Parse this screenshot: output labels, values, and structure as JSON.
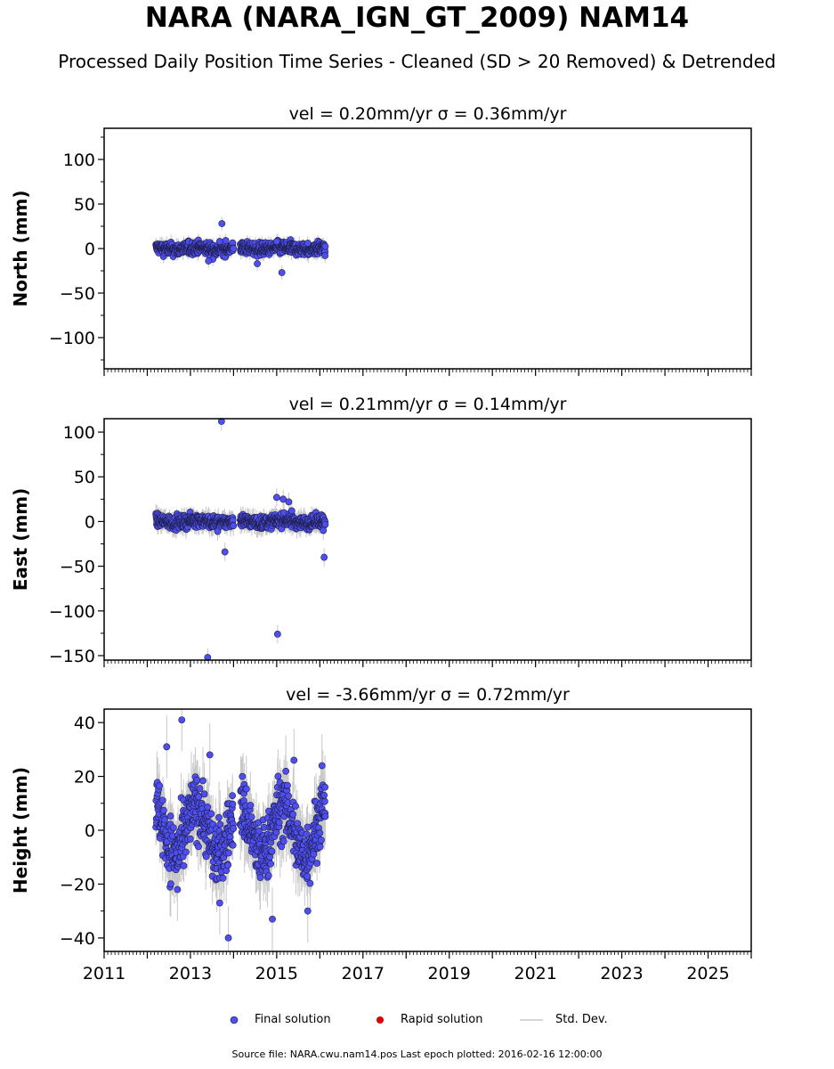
{
  "header": {
    "title": "NARA (NARA_IGN_GT_2009) NAM14",
    "subtitle": "Processed Daily Position Time Series - Cleaned (SD > 20 Removed) & Detrended"
  },
  "legend": {
    "final": "Final solution",
    "rapid": "Rapid solution",
    "stddev": "Std. Dev."
  },
  "footer": {
    "text": "Source file: NARA.cwu.nam14.pos  Last epoch plotted: 2016-02-16 12:00:00"
  },
  "colors": {
    "final": "#4f4ff0",
    "final_edge": "#1e1e4a",
    "rapid": "#dd0000",
    "errorbar": "#c8c8c8"
  },
  "chart_data": [
    {
      "type": "scatter",
      "panel": "north",
      "title": "vel = 0.20mm/yr   σ = 0.36mm/yr",
      "ylabel": "North (mm)",
      "xlim": [
        2011.0,
        2026.0
      ],
      "ylim": [
        -135,
        135
      ],
      "yticks": [
        100,
        50,
        0,
        -50,
        -100
      ],
      "xticks": [
        2011,
        2013,
        2015,
        2017,
        2019,
        2021,
        2023,
        2025
      ],
      "show_xticklabels": false,
      "gaps": [
        [
          2014.0,
          2014.15
        ]
      ],
      "data_range": [
        2012.2,
        2016.13
      ],
      "noise": {
        "amp": 3.5,
        "err": 6,
        "seasonal": 1.0
      },
      "outliers": [
        {
          "x": 2013.73,
          "y": 28
        },
        {
          "x": 2013.68,
          "y": 8
        },
        {
          "x": 2013.82,
          "y": 9
        },
        {
          "x": 2013.52,
          "y": -12
        },
        {
          "x": 2013.42,
          "y": -14
        },
        {
          "x": 2014.55,
          "y": -17
        },
        {
          "x": 2015.12,
          "y": -27
        },
        {
          "x": 2015.0,
          "y": 8
        },
        {
          "x": 2015.72,
          "y": 6
        },
        {
          "x": 2016.12,
          "y": -8
        }
      ]
    },
    {
      "type": "scatter",
      "panel": "east",
      "title": "vel = 0.21mm/yr   σ = 0.14mm/yr",
      "ylabel": "East (mm)",
      "xlim": [
        2011.0,
        2026.0
      ],
      "ylim": [
        -155,
        115
      ],
      "yticks": [
        100,
        50,
        0,
        -50,
        -100,
        -150
      ],
      "xticks": [
        2011,
        2013,
        2015,
        2017,
        2019,
        2021,
        2023,
        2025
      ],
      "show_xticklabels": false,
      "gaps": [
        [
          2014.0,
          2014.15
        ]
      ],
      "data_range": [
        2012.2,
        2016.13
      ],
      "noise": {
        "amp": 3.5,
        "err": 8,
        "seasonal": 1.5
      },
      "outliers": [
        {
          "x": 2013.72,
          "y": 112
        },
        {
          "x": 2013.4,
          "y": -152
        },
        {
          "x": 2013.8,
          "y": -34
        },
        {
          "x": 2013.63,
          "y": -11
        },
        {
          "x": 2015.02,
          "y": -126
        },
        {
          "x": 2015.0,
          "y": 27
        },
        {
          "x": 2015.15,
          "y": 25
        },
        {
          "x": 2015.28,
          "y": 22
        },
        {
          "x": 2015.35,
          "y": 12
        },
        {
          "x": 2016.1,
          "y": -40
        },
        {
          "x": 2016.08,
          "y": -10
        }
      ]
    },
    {
      "type": "scatter",
      "panel": "height",
      "title": "vel = -3.66mm/yr   σ = 0.72mm/yr",
      "ylabel": "Height (mm)",
      "xlim": [
        2011.0,
        2026.0
      ],
      "ylim": [
        -45,
        45
      ],
      "yticks": [
        40,
        20,
        0,
        -20,
        -40
      ],
      "xticks": [
        2011,
        2013,
        2015,
        2017,
        2019,
        2021,
        2023,
        2025
      ],
      "show_xticklabels": true,
      "gaps": [
        [
          2014.0,
          2014.15
        ]
      ],
      "data_range": [
        2012.2,
        2016.13
      ],
      "noise": {
        "amp": 6,
        "err": 9,
        "seasonal": 9
      },
      "outliers": [
        {
          "x": 2012.8,
          "y": 41
        },
        {
          "x": 2012.45,
          "y": 31
        },
        {
          "x": 2013.88,
          "y": -40
        },
        {
          "x": 2013.68,
          "y": -27
        },
        {
          "x": 2014.9,
          "y": -33
        },
        {
          "x": 2015.72,
          "y": -30
        },
        {
          "x": 2015.4,
          "y": 26
        },
        {
          "x": 2016.05,
          "y": 24
        },
        {
          "x": 2016.12,
          "y": 16
        },
        {
          "x": 2012.7,
          "y": -22
        },
        {
          "x": 2013.45,
          "y": 28
        }
      ]
    }
  ]
}
